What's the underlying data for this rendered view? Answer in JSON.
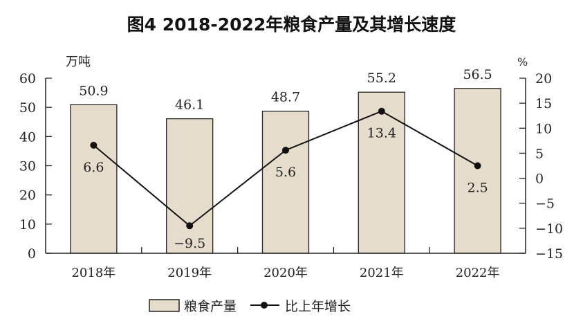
{
  "chart_data": {
    "type": "bar+line",
    "title": "图4 2018-2022年粮食产量及其增长速度",
    "categories": [
      "2018年",
      "2019年",
      "2020年",
      "2021年",
      "2022年"
    ],
    "series": [
      {
        "name": "粮食产量",
        "type": "bar",
        "axis": "left",
        "values": [
          50.9,
          46.1,
          48.7,
          55.2,
          56.5
        ],
        "labels": [
          "50.9",
          "46.1",
          "48.7",
          "55.2",
          "56.5"
        ],
        "color": "#e6dccb"
      },
      {
        "name": "比上年增长",
        "type": "line",
        "axis": "right",
        "values": [
          6.6,
          -9.5,
          5.6,
          13.4,
          2.5
        ],
        "labels": [
          "6.6",
          "-9.5",
          "5.6",
          "13.4",
          "2.5"
        ],
        "color": "#111111"
      }
    ],
    "left_axis": {
      "label": "万吨",
      "ylim": [
        0,
        60
      ],
      "ticks": [
        "0",
        "10",
        "20",
        "30",
        "40",
        "50",
        "60"
      ]
    },
    "right_axis": {
      "label": "%",
      "ylim": [
        -15,
        20
      ],
      "ticks": [
        "-15",
        "-10",
        "-5",
        "0",
        "5",
        "10",
        "15",
        "20"
      ]
    },
    "grid": false,
    "legend": "bottom-center"
  }
}
